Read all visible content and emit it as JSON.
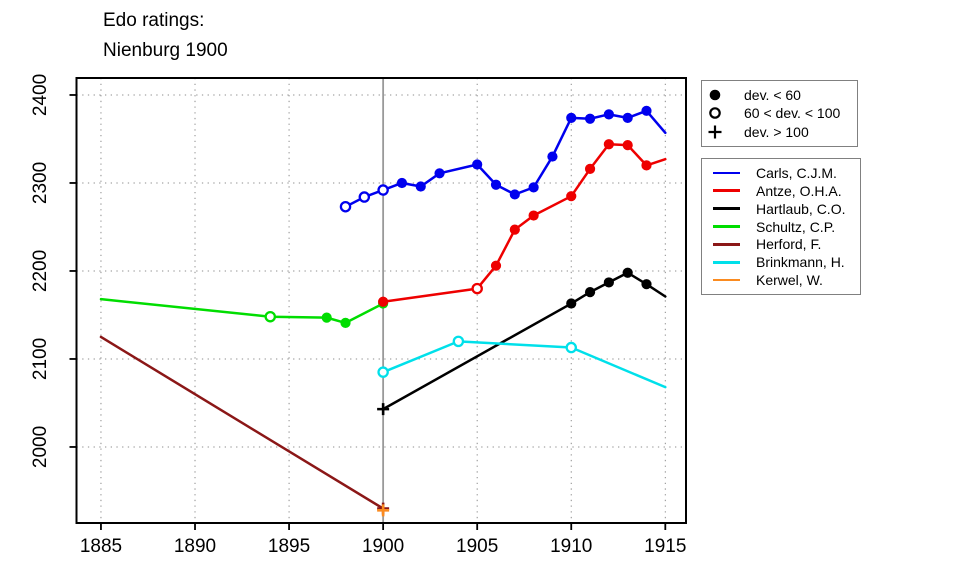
{
  "title": {
    "line1": "Edo ratings:",
    "line2": "Nienburg 1900"
  },
  "colors": {
    "event_line": "#999999",
    "grid": "#8c8c8c",
    "box": "#000000",
    "legend_border": "#808080",
    "tick": "#000000"
  },
  "chart_data": {
    "type": "line",
    "title": "Edo ratings: Nienburg 1900",
    "xlabel": "",
    "ylabel": "",
    "grid": "dotted",
    "legend_position": "right-outside",
    "x_ticks": [
      1885,
      1890,
      1895,
      1900,
      1905,
      1910,
      1915
    ],
    "y_ticks": [
      2000,
      2100,
      2200,
      2300,
      2400
    ],
    "xlim": [
      1883.7,
      1916.1
    ],
    "ylim": [
      1913.6,
      2419.3
    ],
    "event_line_x": 1900,
    "marker_legend": [
      {
        "symbol": "filled-circle",
        "label": "dev. < 60"
      },
      {
        "symbol": "open-circle",
        "label": "60 < dev. < 100"
      },
      {
        "symbol": "plus",
        "label": "dev. > 100"
      }
    ],
    "series": [
      {
        "name": "Carls, C.J.M.",
        "color": "#0000EE",
        "points": [
          {
            "year": 1898,
            "rating": 2273,
            "marker": "open"
          },
          {
            "year": 1899,
            "rating": 2284,
            "marker": "open"
          },
          {
            "year": 1900,
            "rating": 2292,
            "marker": "open"
          },
          {
            "year": 1901,
            "rating": 2300,
            "marker": "filled"
          },
          {
            "year": 1902,
            "rating": 2296,
            "marker": "filled"
          },
          {
            "year": 1903,
            "rating": 2311,
            "marker": "filled"
          },
          {
            "year": 1905,
            "rating": 2321,
            "marker": "filled"
          },
          {
            "year": 1906,
            "rating": 2298,
            "marker": "filled"
          },
          {
            "year": 1907,
            "rating": 2287,
            "marker": "filled"
          },
          {
            "year": 1908,
            "rating": 2295,
            "marker": "filled"
          },
          {
            "year": 1909,
            "rating": 2330,
            "marker": "filled"
          },
          {
            "year": 1910,
            "rating": 2374,
            "marker": "filled"
          },
          {
            "year": 1911,
            "rating": 2373,
            "marker": "filled"
          },
          {
            "year": 1912,
            "rating": 2378,
            "marker": "filled"
          },
          {
            "year": 1913,
            "rating": 2374,
            "marker": "filled"
          },
          {
            "year": 1914,
            "rating": 2382,
            "marker": "filled"
          },
          {
            "year": 1915,
            "rating": 2357,
            "marker": "none"
          }
        ]
      },
      {
        "name": "Antze, O.H.A.",
        "color": "#EE0000",
        "points": [
          {
            "year": 1900,
            "rating": 2165,
            "marker": "filled"
          },
          {
            "year": 1905,
            "rating": 2180,
            "marker": "open"
          },
          {
            "year": 1906,
            "rating": 2206,
            "marker": "filled"
          },
          {
            "year": 1907,
            "rating": 2247,
            "marker": "filled"
          },
          {
            "year": 1908,
            "rating": 2263,
            "marker": "filled"
          },
          {
            "year": 1910,
            "rating": 2285,
            "marker": "filled"
          },
          {
            "year": 1911,
            "rating": 2316,
            "marker": "filled"
          },
          {
            "year": 1912,
            "rating": 2344,
            "marker": "filled"
          },
          {
            "year": 1913,
            "rating": 2343,
            "marker": "filled"
          },
          {
            "year": 1914,
            "rating": 2320,
            "marker": "filled"
          },
          {
            "year": 1915,
            "rating": 2327,
            "marker": "none"
          }
        ]
      },
      {
        "name": "Hartlaub, C.O.",
        "color": "#000000",
        "points": [
          {
            "year": 1900,
            "rating": 2043,
            "marker": "plus"
          },
          {
            "year": 1910,
            "rating": 2163,
            "marker": "filled"
          },
          {
            "year": 1911,
            "rating": 2176,
            "marker": "filled"
          },
          {
            "year": 1912,
            "rating": 2187,
            "marker": "filled"
          },
          {
            "year": 1913,
            "rating": 2198,
            "marker": "filled"
          },
          {
            "year": 1914,
            "rating": 2185,
            "marker": "filled"
          },
          {
            "year": 1915,
            "rating": 2171,
            "marker": "none"
          }
        ]
      },
      {
        "name": "Schultz, C.P.",
        "color": "#00DD00",
        "points": [
          {
            "year": 1885,
            "rating": 2168,
            "marker": "none"
          },
          {
            "year": 1894,
            "rating": 2148,
            "marker": "open"
          },
          {
            "year": 1897,
            "rating": 2147,
            "marker": "filled"
          },
          {
            "year": 1898,
            "rating": 2141,
            "marker": "filled"
          },
          {
            "year": 1900,
            "rating": 2163,
            "marker": "filled"
          }
        ]
      },
      {
        "name": "Herford, F.",
        "color": "#8B1717",
        "points": [
          {
            "year": 1885,
            "rating": 2125,
            "marker": "none"
          },
          {
            "year": 1900,
            "rating": 1930,
            "marker": "plus"
          }
        ]
      },
      {
        "name": "Brinkmann, H.",
        "color": "#00E0EA",
        "points": [
          {
            "year": 1900,
            "rating": 2085,
            "marker": "open"
          },
          {
            "year": 1904,
            "rating": 2120,
            "marker": "open"
          },
          {
            "year": 1910,
            "rating": 2113,
            "marker": "open"
          },
          {
            "year": 1915,
            "rating": 2068,
            "marker": "none"
          }
        ]
      },
      {
        "name": "Kerwel, W.",
        "color": "#FA8B20",
        "points": [
          {
            "year": 1900,
            "rating": 1928,
            "marker": "plus"
          }
        ]
      }
    ]
  }
}
